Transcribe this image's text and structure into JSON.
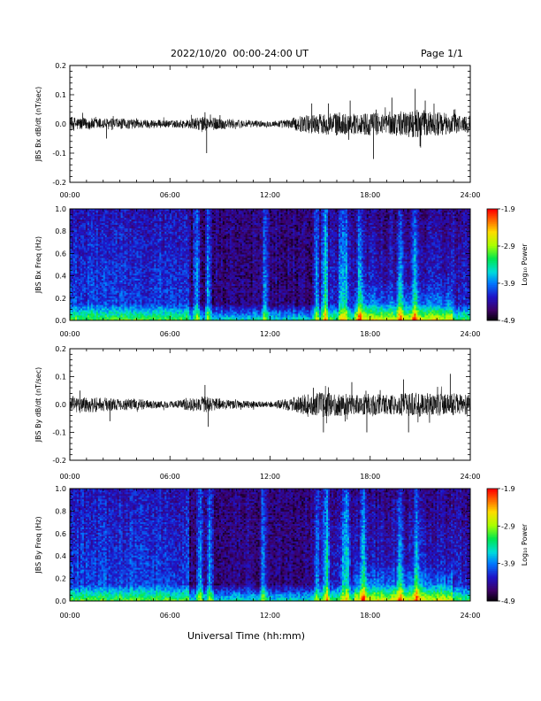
{
  "header": {
    "title": "2022/10/20  00:00-24:00 UT",
    "page": "Page 1/1"
  },
  "xlabel": "Universal Time (hh:mm)",
  "chart_data": [
    {
      "type": "line",
      "ylabel": "JBS Bx dB/dt (nT/sec)",
      "ylim": [
        -0.2,
        0.2
      ],
      "yticks": [
        "0.2",
        "0.1",
        "0.0",
        "-0.1",
        "-0.2"
      ],
      "xlim": [
        0,
        24
      ],
      "xticks": [
        "00:00",
        "06:00",
        "12:00",
        "18:00",
        "24:00"
      ],
      "x_hours": [
        0,
        1,
        2,
        3,
        4,
        5,
        6,
        7,
        8,
        9,
        10,
        11,
        12,
        13,
        14,
        15,
        16,
        17,
        18,
        19,
        20,
        21,
        22,
        23,
        24
      ],
      "amplitude": [
        0.025,
        0.02,
        0.02,
        0.018,
        0.016,
        0.015,
        0.012,
        0.015,
        0.025,
        0.02,
        0.015,
        0.012,
        0.01,
        0.015,
        0.03,
        0.035,
        0.04,
        0.035,
        0.04,
        0.035,
        0.045,
        0.05,
        0.04,
        0.035,
        0.03
      ],
      "spikes": [
        {
          "x": 2.2,
          "y": -0.05
        },
        {
          "x": 8.1,
          "y": 0.04
        },
        {
          "x": 8.2,
          "y": -0.1
        },
        {
          "x": 9.0,
          "y": 0.03
        },
        {
          "x": 14.5,
          "y": 0.07
        },
        {
          "x": 15.5,
          "y": 0.07
        },
        {
          "x": 16.8,
          "y": 0.08
        },
        {
          "x": 18.2,
          "y": -0.12
        },
        {
          "x": 19.3,
          "y": 0.09
        },
        {
          "x": 20.7,
          "y": 0.12
        },
        {
          "x": 21.3,
          "y": 0.08
        }
      ]
    },
    {
      "type": "heatmap",
      "ylabel": "JBS Bx Freq (Hz)",
      "ylim": [
        0,
        1.0
      ],
      "yticks": [
        "1.0",
        "0.8",
        "0.6",
        "0.4",
        "0.2",
        "0.0"
      ],
      "xlim": [
        0,
        24
      ],
      "xticks": [
        "00:00",
        "06:00",
        "12:00",
        "18:00",
        "24:00"
      ],
      "colorbar": {
        "label": "Log₁₀ Power",
        "ticks": [
          "-1.9",
          "-2.9",
          "-3.9",
          "-4.9"
        ],
        "range": [
          -4.9,
          -1.9
        ]
      },
      "bright_times": [
        7.6,
        8.3,
        11.7,
        14.8,
        15.3,
        16.3,
        16.5,
        17.4,
        19.8,
        20.7
      ],
      "dark_period": [
        7.2,
        15.0
      ]
    },
    {
      "type": "line",
      "ylabel": "JBS By dB/dt (nT/sec)",
      "ylim": [
        -0.2,
        0.2
      ],
      "yticks": [
        "0.2",
        "0.1",
        "0.0",
        "-0.1",
        "-0.2"
      ],
      "xlim": [
        0,
        24
      ],
      "xticks": [
        "00:00",
        "06:00",
        "12:00",
        "18:00",
        "24:00"
      ],
      "x_hours": [
        0,
        1,
        2,
        3,
        4,
        5,
        6,
        7,
        8,
        9,
        10,
        11,
        12,
        13,
        14,
        15,
        16,
        17,
        18,
        19,
        20,
        21,
        22,
        23,
        24
      ],
      "amplitude": [
        0.03,
        0.03,
        0.025,
        0.02,
        0.02,
        0.015,
        0.012,
        0.02,
        0.03,
        0.02,
        0.015,
        0.012,
        0.01,
        0.02,
        0.035,
        0.045,
        0.04,
        0.035,
        0.04,
        0.035,
        0.04,
        0.045,
        0.04,
        0.04,
        0.035
      ],
      "spikes": [
        {
          "x": 0.6,
          "y": 0.05
        },
        {
          "x": 2.4,
          "y": -0.06
        },
        {
          "x": 8.1,
          "y": 0.07
        },
        {
          "x": 8.3,
          "y": -0.08
        },
        {
          "x": 14.6,
          "y": 0.06
        },
        {
          "x": 15.2,
          "y": -0.1
        },
        {
          "x": 16.9,
          "y": 0.08
        },
        {
          "x": 17.8,
          "y": -0.1
        },
        {
          "x": 20.0,
          "y": 0.09
        },
        {
          "x": 20.3,
          "y": -0.1
        },
        {
          "x": 22.8,
          "y": 0.11
        }
      ]
    },
    {
      "type": "heatmap",
      "ylabel": "JBS By Freq (Hz)",
      "ylim": [
        0,
        1.0
      ],
      "yticks": [
        "1.0",
        "0.8",
        "0.6",
        "0.4",
        "0.2",
        "0.0"
      ],
      "xlim": [
        0,
        24
      ],
      "xticks": [
        "00:00",
        "06:00",
        "12:00",
        "18:00",
        "24:00"
      ],
      "colorbar": {
        "label": "Log₁₀ Power",
        "ticks": [
          "-1.9",
          "-2.9",
          "-3.9",
          "-4.9"
        ],
        "range": [
          -4.9,
          -1.9
        ]
      },
      "bright_times": [
        7.8,
        8.4,
        11.6,
        14.8,
        15.4,
        16.4,
        16.6,
        17.6,
        19.8,
        20.8
      ],
      "dark_period": [
        7.2,
        15.0
      ]
    }
  ]
}
